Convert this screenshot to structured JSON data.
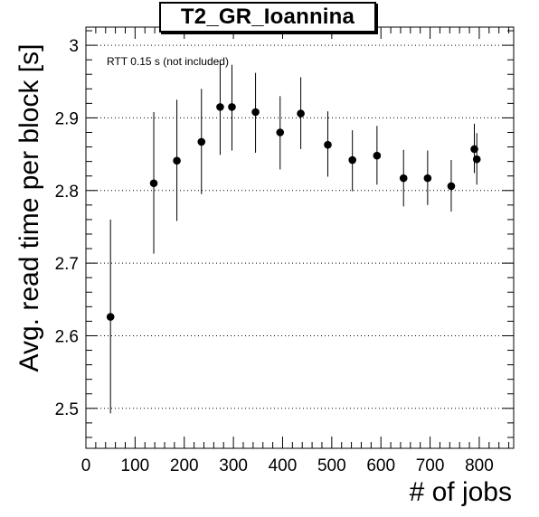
{
  "chart_data": {
    "type": "scatter",
    "title": "T2_GR_Ioannina",
    "annotation": "RTT 0.15 s (not included)",
    "xlabel": "# of jobs",
    "ylabel": "Avg. read time per block [s]",
    "xlim": [
      0,
      870
    ],
    "ylim": [
      2.445,
      3.025
    ],
    "x_ticks": [
      0,
      100,
      200,
      300,
      400,
      500,
      600,
      700,
      800
    ],
    "y_ticks": [
      2.5,
      2.6,
      2.7,
      2.8,
      2.9,
      3.0
    ],
    "y_tick_labels": [
      "2.5",
      "2.6",
      "2.7",
      "2.8",
      "2.9",
      "3"
    ],
    "grid": "horizontal-dotted",
    "series": [
      {
        "points": [
          {
            "x": 50,
            "y": 2.626,
            "err_low": 2.493,
            "err_high": 2.76
          },
          {
            "x": 138,
            "y": 2.81,
            "err_low": 2.713,
            "err_high": 2.908
          },
          {
            "x": 185,
            "y": 2.841,
            "err_low": 2.758,
            "err_high": 2.925
          },
          {
            "x": 235,
            "y": 2.867,
            "err_low": 2.795,
            "err_high": 2.94
          },
          {
            "x": 273,
            "y": 2.915,
            "err_low": 2.849,
            "err_high": 2.978
          },
          {
            "x": 297,
            "y": 2.915,
            "err_low": 2.855,
            "err_high": 2.973
          },
          {
            "x": 345,
            "y": 2.908,
            "err_low": 2.852,
            "err_high": 2.962
          },
          {
            "x": 395,
            "y": 2.88,
            "err_low": 2.829,
            "err_high": 2.93
          },
          {
            "x": 437,
            "y": 2.906,
            "err_low": 2.857,
            "err_high": 2.956
          },
          {
            "x": 492,
            "y": 2.863,
            "err_low": 2.819,
            "err_high": 2.909
          },
          {
            "x": 542,
            "y": 2.842,
            "err_low": 2.799,
            "err_high": 2.883
          },
          {
            "x": 592,
            "y": 2.848,
            "err_low": 2.808,
            "err_high": 2.889
          },
          {
            "x": 646,
            "y": 2.817,
            "err_low": 2.778,
            "err_high": 2.856
          },
          {
            "x": 695,
            "y": 2.817,
            "err_low": 2.78,
            "err_high": 2.855
          },
          {
            "x": 743,
            "y": 2.806,
            "err_low": 2.771,
            "err_high": 2.842
          },
          {
            "x": 790,
            "y": 2.857,
            "err_low": 2.824,
            "err_high": 2.892
          },
          {
            "x": 795,
            "y": 2.843,
            "err_low": 2.808,
            "err_high": 2.879
          }
        ]
      }
    ],
    "marker_color": "#000000"
  }
}
